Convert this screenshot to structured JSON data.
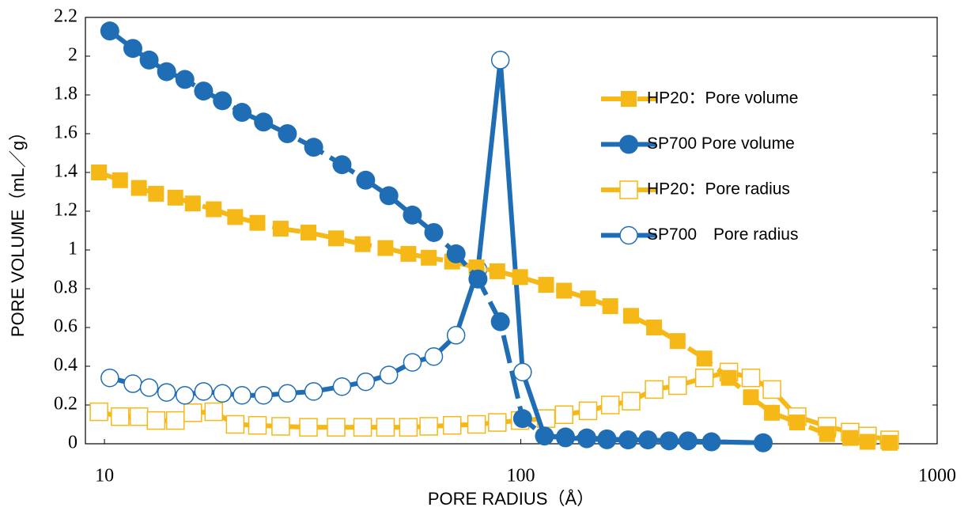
{
  "chart_data": {
    "type": "line",
    "xlabel": "PORE RADIUS（Å）",
    "ylabel": "PORE VOLUME（mL／g）",
    "xscale": "log",
    "xlim": [
      9,
      1000
    ],
    "xticks": [
      10,
      100,
      1000
    ],
    "ylim": [
      0,
      2.2
    ],
    "yticks": [
      0,
      0.2,
      0.4,
      0.6,
      0.8,
      1,
      1.2,
      1.4,
      1.6,
      1.8,
      2,
      2.2
    ],
    "legend": "upper right",
    "series": [
      {
        "name": "HP20：Pore volume",
        "color": "#f5b816",
        "marker": "square",
        "filled": true,
        "linestyle": "dashed",
        "x": [
          9.7,
          10.9,
          12.1,
          13.3,
          14.8,
          16.3,
          18.3,
          20.6,
          23.3,
          26.5,
          30.9,
          36.0,
          41.7,
          47.3,
          53.7,
          60.1,
          68.4,
          78.3,
          87.8,
          99.6,
          115,
          127,
          145,
          164,
          184,
          209,
          238,
          276,
          316,
          357,
          401,
          461,
          544,
          618,
          680,
          769
        ],
        "values": [
          1.4,
          1.36,
          1.32,
          1.29,
          1.27,
          1.24,
          1.21,
          1.17,
          1.14,
          1.11,
          1.09,
          1.06,
          1.03,
          1.01,
          0.98,
          0.96,
          0.94,
          0.91,
          0.89,
          0.86,
          0.82,
          0.79,
          0.75,
          0.71,
          0.66,
          0.6,
          0.53,
          0.44,
          0.34,
          0.24,
          0.16,
          0.11,
          0.05,
          0.03,
          0.01,
          0.005
        ]
      },
      {
        "name": "SP700 Pore volume",
        "color": "#1f6eb5",
        "marker": "circle",
        "filled": true,
        "linestyle": "dashed",
        "x": [
          10.3,
          11.7,
          12.8,
          14.1,
          15.6,
          17.3,
          19.2,
          21.4,
          24.1,
          27.5,
          31.8,
          37.2,
          42.4,
          48.2,
          54.9,
          61.8,
          69.9,
          78.9,
          89.3,
          101,
          114,
          128,
          144,
          161,
          181,
          202,
          227,
          252,
          287,
          382
        ],
        "values": [
          2.13,
          2.04,
          1.98,
          1.92,
          1.88,
          1.82,
          1.77,
          1.71,
          1.66,
          1.6,
          1.53,
          1.44,
          1.36,
          1.28,
          1.18,
          1.09,
          0.98,
          0.85,
          0.63,
          0.13,
          0.04,
          0.035,
          0.03,
          0.025,
          0.02,
          0.02,
          0.015,
          0.015,
          0.01,
          0.005
        ]
      },
      {
        "name": "HP20：Pore radius",
        "color": "#f5b816",
        "marker": "square",
        "filled": false,
        "linestyle": "solid",
        "x": [
          9.7,
          10.9,
          12.1,
          13.3,
          14.8,
          16.3,
          18.3,
          20.6,
          23.3,
          26.5,
          30.9,
          36.0,
          41.7,
          47.3,
          53.7,
          60.1,
          68.4,
          78.3,
          87.8,
          99.6,
          115,
          127,
          145,
          164,
          184,
          209,
          238,
          276,
          316,
          357,
          401,
          461,
          544,
          618,
          680,
          769
        ],
        "values": [
          0.165,
          0.14,
          0.14,
          0.12,
          0.12,
          0.16,
          0.165,
          0.1,
          0.095,
          0.09,
          0.085,
          0.085,
          0.085,
          0.085,
          0.085,
          0.09,
          0.095,
          0.1,
          0.11,
          0.12,
          0.13,
          0.15,
          0.17,
          0.2,
          0.22,
          0.28,
          0.3,
          0.34,
          0.37,
          0.34,
          0.28,
          0.14,
          0.09,
          0.06,
          0.04,
          0.02
        ]
      },
      {
        "name": "SP700　Pore radius",
        "color": "#1f6eb5",
        "marker": "circle",
        "filled": false,
        "linestyle": "solid",
        "x": [
          10.3,
          11.7,
          12.8,
          14.1,
          15.6,
          17.3,
          19.2,
          21.4,
          24.1,
          27.5,
          31.8,
          37.2,
          42.4,
          48.2,
          54.9,
          61.8,
          69.9,
          78.9,
          89.3,
          101,
          114,
          128,
          144,
          161,
          181,
          202,
          227,
          252,
          287,
          382
        ],
        "values": [
          0.34,
          0.31,
          0.29,
          0.265,
          0.25,
          0.27,
          0.26,
          0.25,
          0.25,
          0.26,
          0.27,
          0.295,
          0.32,
          0.355,
          0.42,
          0.45,
          0.56,
          0.9,
          1.98,
          0.37,
          0.04,
          0.03,
          0.025,
          0.02,
          0.02,
          0.02,
          0.015,
          0.015,
          0.01,
          0.005
        ]
      }
    ]
  }
}
